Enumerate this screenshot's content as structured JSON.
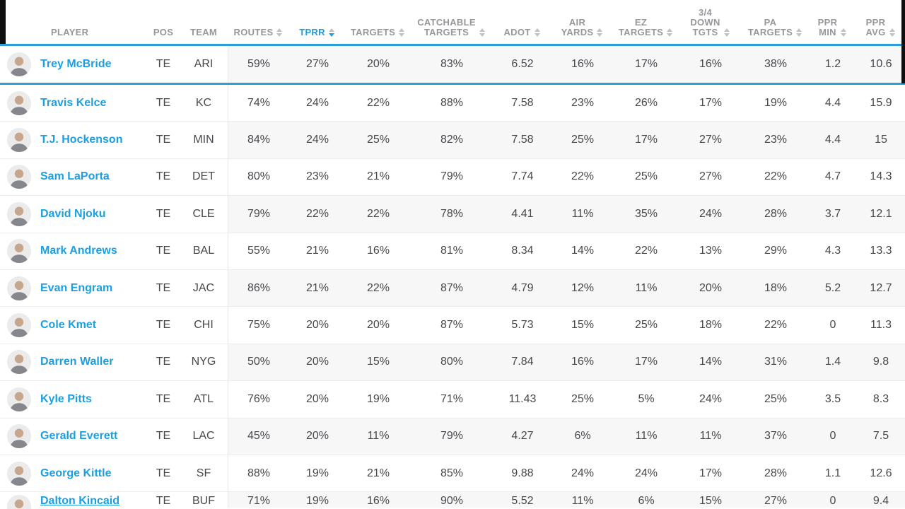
{
  "accent_color": "#2e9ed6",
  "link_color": "#1b9fe1",
  "table": {
    "columns": [
      {
        "key": "player",
        "label": "PLAYER",
        "sortable": false
      },
      {
        "key": "pos",
        "label": "POS",
        "sortable": false
      },
      {
        "key": "team",
        "label": "TEAM",
        "sortable": false
      },
      {
        "key": "routes",
        "label": "ROUTES",
        "sortable": true
      },
      {
        "key": "tprr",
        "label": "TPRR",
        "sortable": true,
        "sort": "desc"
      },
      {
        "key": "targets",
        "label": "TARGETS",
        "sortable": true
      },
      {
        "key": "catchable",
        "label": "CATCHABLE\nTARGETS",
        "sortable": true
      },
      {
        "key": "adot",
        "label": "ADOT",
        "sortable": true
      },
      {
        "key": "airyards",
        "label": "AIR\nYARDS",
        "sortable": true
      },
      {
        "key": "ez",
        "label": "EZ\nTARGETS",
        "sortable": true
      },
      {
        "key": "down34",
        "label": "3/4\nDOWN\nTGTS",
        "sortable": true
      },
      {
        "key": "pa",
        "label": "PA\nTARGETS",
        "sortable": true
      },
      {
        "key": "pprmin",
        "label": "PPR\nMIN",
        "sortable": true
      },
      {
        "key": "ppravg",
        "label": "PPR\nAVG",
        "sortable": true
      }
    ],
    "rows": [
      {
        "player": "Trey McBride",
        "pos": "TE",
        "team": "ARI",
        "selected": true,
        "stats": {
          "routes": "59%",
          "tprr": "27%",
          "targets": "20%",
          "catchable": "83%",
          "adot": "6.52",
          "airyards": "16%",
          "ez": "17%",
          "down34": "16%",
          "pa": "38%",
          "pprmin": "1.2",
          "ppravg": "10.6"
        }
      },
      {
        "player": "Travis Kelce",
        "pos": "TE",
        "team": "KC",
        "stats": {
          "routes": "74%",
          "tprr": "24%",
          "targets": "22%",
          "catchable": "88%",
          "adot": "7.58",
          "airyards": "23%",
          "ez": "26%",
          "down34": "17%",
          "pa": "19%",
          "pprmin": "4.4",
          "ppravg": "15.9"
        }
      },
      {
        "player": "T.J. Hockenson",
        "pos": "TE",
        "team": "MIN",
        "stats": {
          "routes": "84%",
          "tprr": "24%",
          "targets": "25%",
          "catchable": "82%",
          "adot": "7.58",
          "airyards": "25%",
          "ez": "17%",
          "down34": "27%",
          "pa": "23%",
          "pprmin": "4.4",
          "ppravg": "15"
        }
      },
      {
        "player": "Sam LaPorta",
        "pos": "TE",
        "team": "DET",
        "stats": {
          "routes": "80%",
          "tprr": "23%",
          "targets": "21%",
          "catchable": "79%",
          "adot": "7.74",
          "airyards": "22%",
          "ez": "25%",
          "down34": "27%",
          "pa": "22%",
          "pprmin": "4.7",
          "ppravg": "14.3"
        }
      },
      {
        "player": "David Njoku",
        "pos": "TE",
        "team": "CLE",
        "stats": {
          "routes": "79%",
          "tprr": "22%",
          "targets": "22%",
          "catchable": "78%",
          "adot": "4.41",
          "airyards": "11%",
          "ez": "35%",
          "down34": "24%",
          "pa": "28%",
          "pprmin": "3.7",
          "ppravg": "12.1"
        }
      },
      {
        "player": "Mark Andrews",
        "pos": "TE",
        "team": "BAL",
        "stats": {
          "routes": "55%",
          "tprr": "21%",
          "targets": "16%",
          "catchable": "81%",
          "adot": "8.34",
          "airyards": "14%",
          "ez": "22%",
          "down34": "13%",
          "pa": "29%",
          "pprmin": "4.3",
          "ppravg": "13.3"
        }
      },
      {
        "player": "Evan Engram",
        "pos": "TE",
        "team": "JAC",
        "stats": {
          "routes": "86%",
          "tprr": "21%",
          "targets": "22%",
          "catchable": "87%",
          "adot": "4.79",
          "airyards": "12%",
          "ez": "11%",
          "down34": "20%",
          "pa": "18%",
          "pprmin": "5.2",
          "ppravg": "12.7"
        }
      },
      {
        "player": "Cole Kmet",
        "pos": "TE",
        "team": "CHI",
        "stats": {
          "routes": "75%",
          "tprr": "20%",
          "targets": "20%",
          "catchable": "87%",
          "adot": "5.73",
          "airyards": "15%",
          "ez": "25%",
          "down34": "18%",
          "pa": "22%",
          "pprmin": "0",
          "ppravg": "11.3"
        }
      },
      {
        "player": "Darren Waller",
        "pos": "TE",
        "team": "NYG",
        "stats": {
          "routes": "50%",
          "tprr": "20%",
          "targets": "15%",
          "catchable": "80%",
          "adot": "7.84",
          "airyards": "16%",
          "ez": "17%",
          "down34": "14%",
          "pa": "31%",
          "pprmin": "1.4",
          "ppravg": "9.8"
        }
      },
      {
        "player": "Kyle Pitts",
        "pos": "TE",
        "team": "ATL",
        "stats": {
          "routes": "76%",
          "tprr": "20%",
          "targets": "19%",
          "catchable": "71%",
          "adot": "11.43",
          "airyards": "25%",
          "ez": "5%",
          "down34": "24%",
          "pa": "25%",
          "pprmin": "3.5",
          "ppravg": "8.3"
        }
      },
      {
        "player": "Gerald Everett",
        "pos": "TE",
        "team": "LAC",
        "stats": {
          "routes": "45%",
          "tprr": "20%",
          "targets": "11%",
          "catchable": "79%",
          "adot": "4.27",
          "airyards": "6%",
          "ez": "11%",
          "down34": "11%",
          "pa": "37%",
          "pprmin": "0",
          "ppravg": "7.5"
        }
      },
      {
        "player": "George Kittle",
        "pos": "TE",
        "team": "SF",
        "stats": {
          "routes": "88%",
          "tprr": "19%",
          "targets": "21%",
          "catchable": "85%",
          "adot": "9.88",
          "airyards": "24%",
          "ez": "24%",
          "down34": "17%",
          "pa": "28%",
          "pprmin": "1.1",
          "ppravg": "12.6"
        }
      },
      {
        "player": "Dalton Kincaid",
        "pos": "TE",
        "team": "BUF",
        "stats": {
          "routes": "71%",
          "tprr": "19%",
          "targets": "16%",
          "catchable": "90%",
          "adot": "5.52",
          "airyards": "11%",
          "ez": "6%",
          "down34": "15%",
          "pa": "27%",
          "pprmin": "0",
          "ppravg": "9.4"
        }
      }
    ]
  }
}
